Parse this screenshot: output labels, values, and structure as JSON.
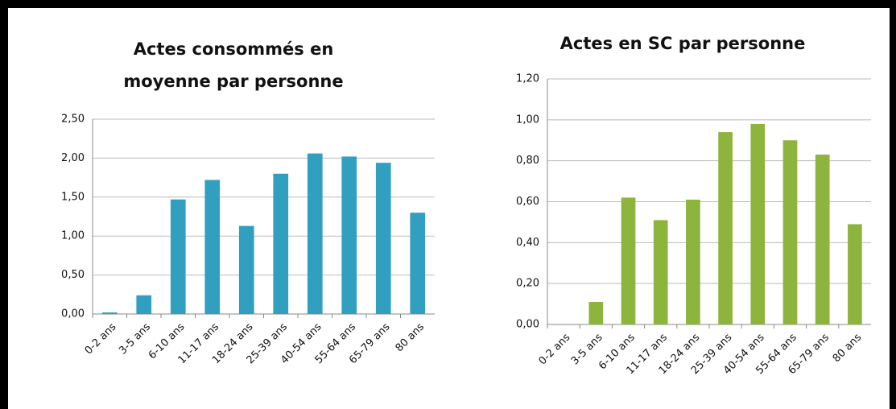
{
  "chart_data": [
    {
      "type": "bar",
      "title": [
        "Actes consommés en",
        "moyenne par personne"
      ],
      "categories": [
        "0-2 ans",
        "3-5 ans",
        "6-10 ans",
        "11-17 ans",
        "18-24 ans",
        "25-39 ans",
        "40-54 ans",
        "55-64 ans",
        "65-79 ans",
        "80 ans"
      ],
      "values": [
        0.02,
        0.24,
        1.47,
        1.72,
        1.13,
        1.8,
        2.06,
        2.02,
        1.94,
        1.3
      ],
      "color": "#31a0c0",
      "ylim": [
        0,
        2.5
      ],
      "yticks": [
        {
          "value": 0,
          "label": "0,00"
        },
        {
          "value": 0.5,
          "label": "0,50"
        },
        {
          "value": 1,
          "label": "1,00"
        },
        {
          "value": 1.5,
          "label": "1,50"
        },
        {
          "value": 2,
          "label": "2,00"
        },
        {
          "value": 2.5,
          "label": "2,50"
        }
      ],
      "grid": true
    },
    {
      "type": "bar",
      "title": [
        "Actes en SC par personne"
      ],
      "categories": [
        "0-2 ans",
        "3-5 ans",
        "6-10 ans",
        "11-17 ans",
        "18-24 ans",
        "25-39 ans",
        "40-54 ans",
        "55-64 ans",
        "65-79 ans",
        "80 ans"
      ],
      "values": [
        0,
        0.11,
        0.62,
        0.51,
        0.61,
        0.94,
        0.98,
        0.9,
        0.83,
        0.49
      ],
      "color": "#8db43c",
      "ylim": [
        0,
        1.2
      ],
      "yticks": [
        {
          "value": 0,
          "label": "0,00"
        },
        {
          "value": 0.2,
          "label": "0,20"
        },
        {
          "value": 0.4,
          "label": "0,40"
        },
        {
          "value": 0.6,
          "label": "0,60"
        },
        {
          "value": 0.8,
          "label": "0,80"
        },
        {
          "value": 1,
          "label": "1,00"
        },
        {
          "value": 1.2,
          "label": "1,20"
        }
      ],
      "grid": true
    }
  ]
}
